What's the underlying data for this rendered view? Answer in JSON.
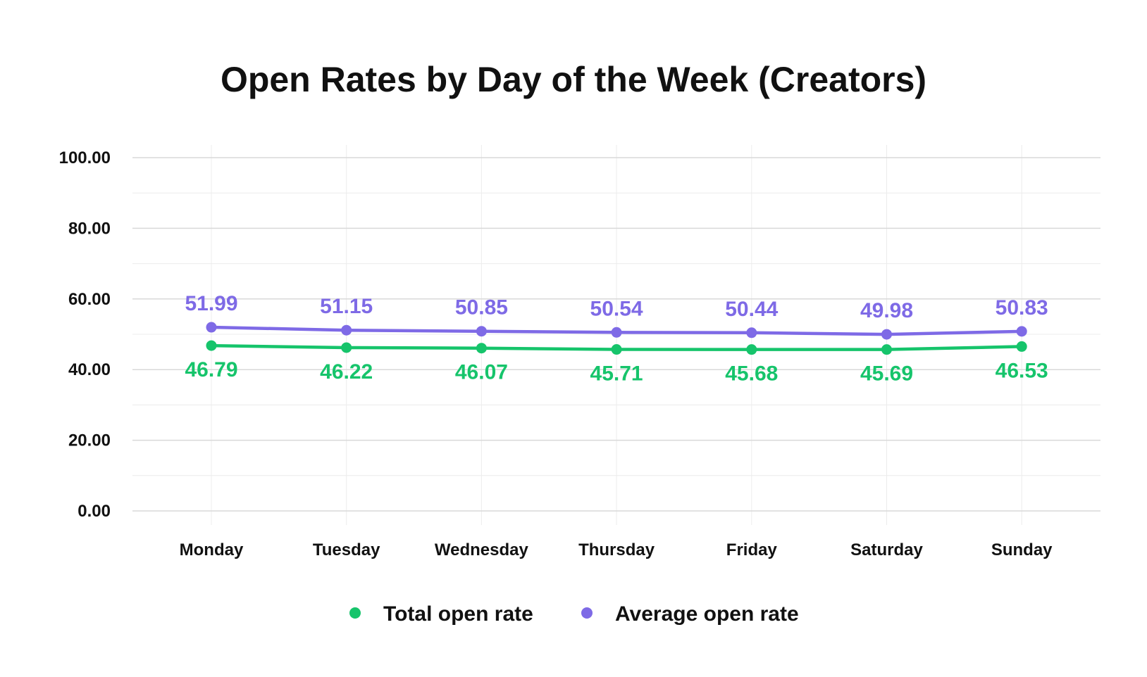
{
  "chart_data": {
    "type": "line",
    "title": "Open Rates by Day of the Week (Creators)",
    "xlabel": "",
    "ylabel": "",
    "categories": [
      "Monday",
      "Tuesday",
      "Wednesday",
      "Thursday",
      "Friday",
      "Saturday",
      "Sunday"
    ],
    "ylim": [
      0,
      100
    ],
    "yticks": [
      "0.00",
      "20.00",
      "40.00",
      "60.00",
      "80.00",
      "100.00"
    ],
    "grid": true,
    "legend_position": "bottom-center",
    "series": [
      {
        "name": "Total open rate",
        "color": "#16c46b",
        "label_position": "below",
        "values": [
          46.79,
          46.22,
          46.07,
          45.71,
          45.68,
          45.69,
          46.53
        ],
        "labels": [
          "46.79",
          "46.22",
          "46.07",
          "45.71",
          "45.68",
          "45.69",
          "46.53"
        ]
      },
      {
        "name": "Average open rate",
        "color": "#7e6ae6",
        "label_position": "above",
        "values": [
          51.99,
          51.15,
          50.85,
          50.54,
          50.44,
          49.98,
          50.83
        ],
        "labels": [
          "51.99",
          "51.15",
          "50.85",
          "50.54",
          "50.44",
          "49.98",
          "50.83"
        ]
      }
    ]
  },
  "colors": {
    "grid_major": "#d9d9d9",
    "grid_minor": "#ececec",
    "text": "#111111"
  }
}
